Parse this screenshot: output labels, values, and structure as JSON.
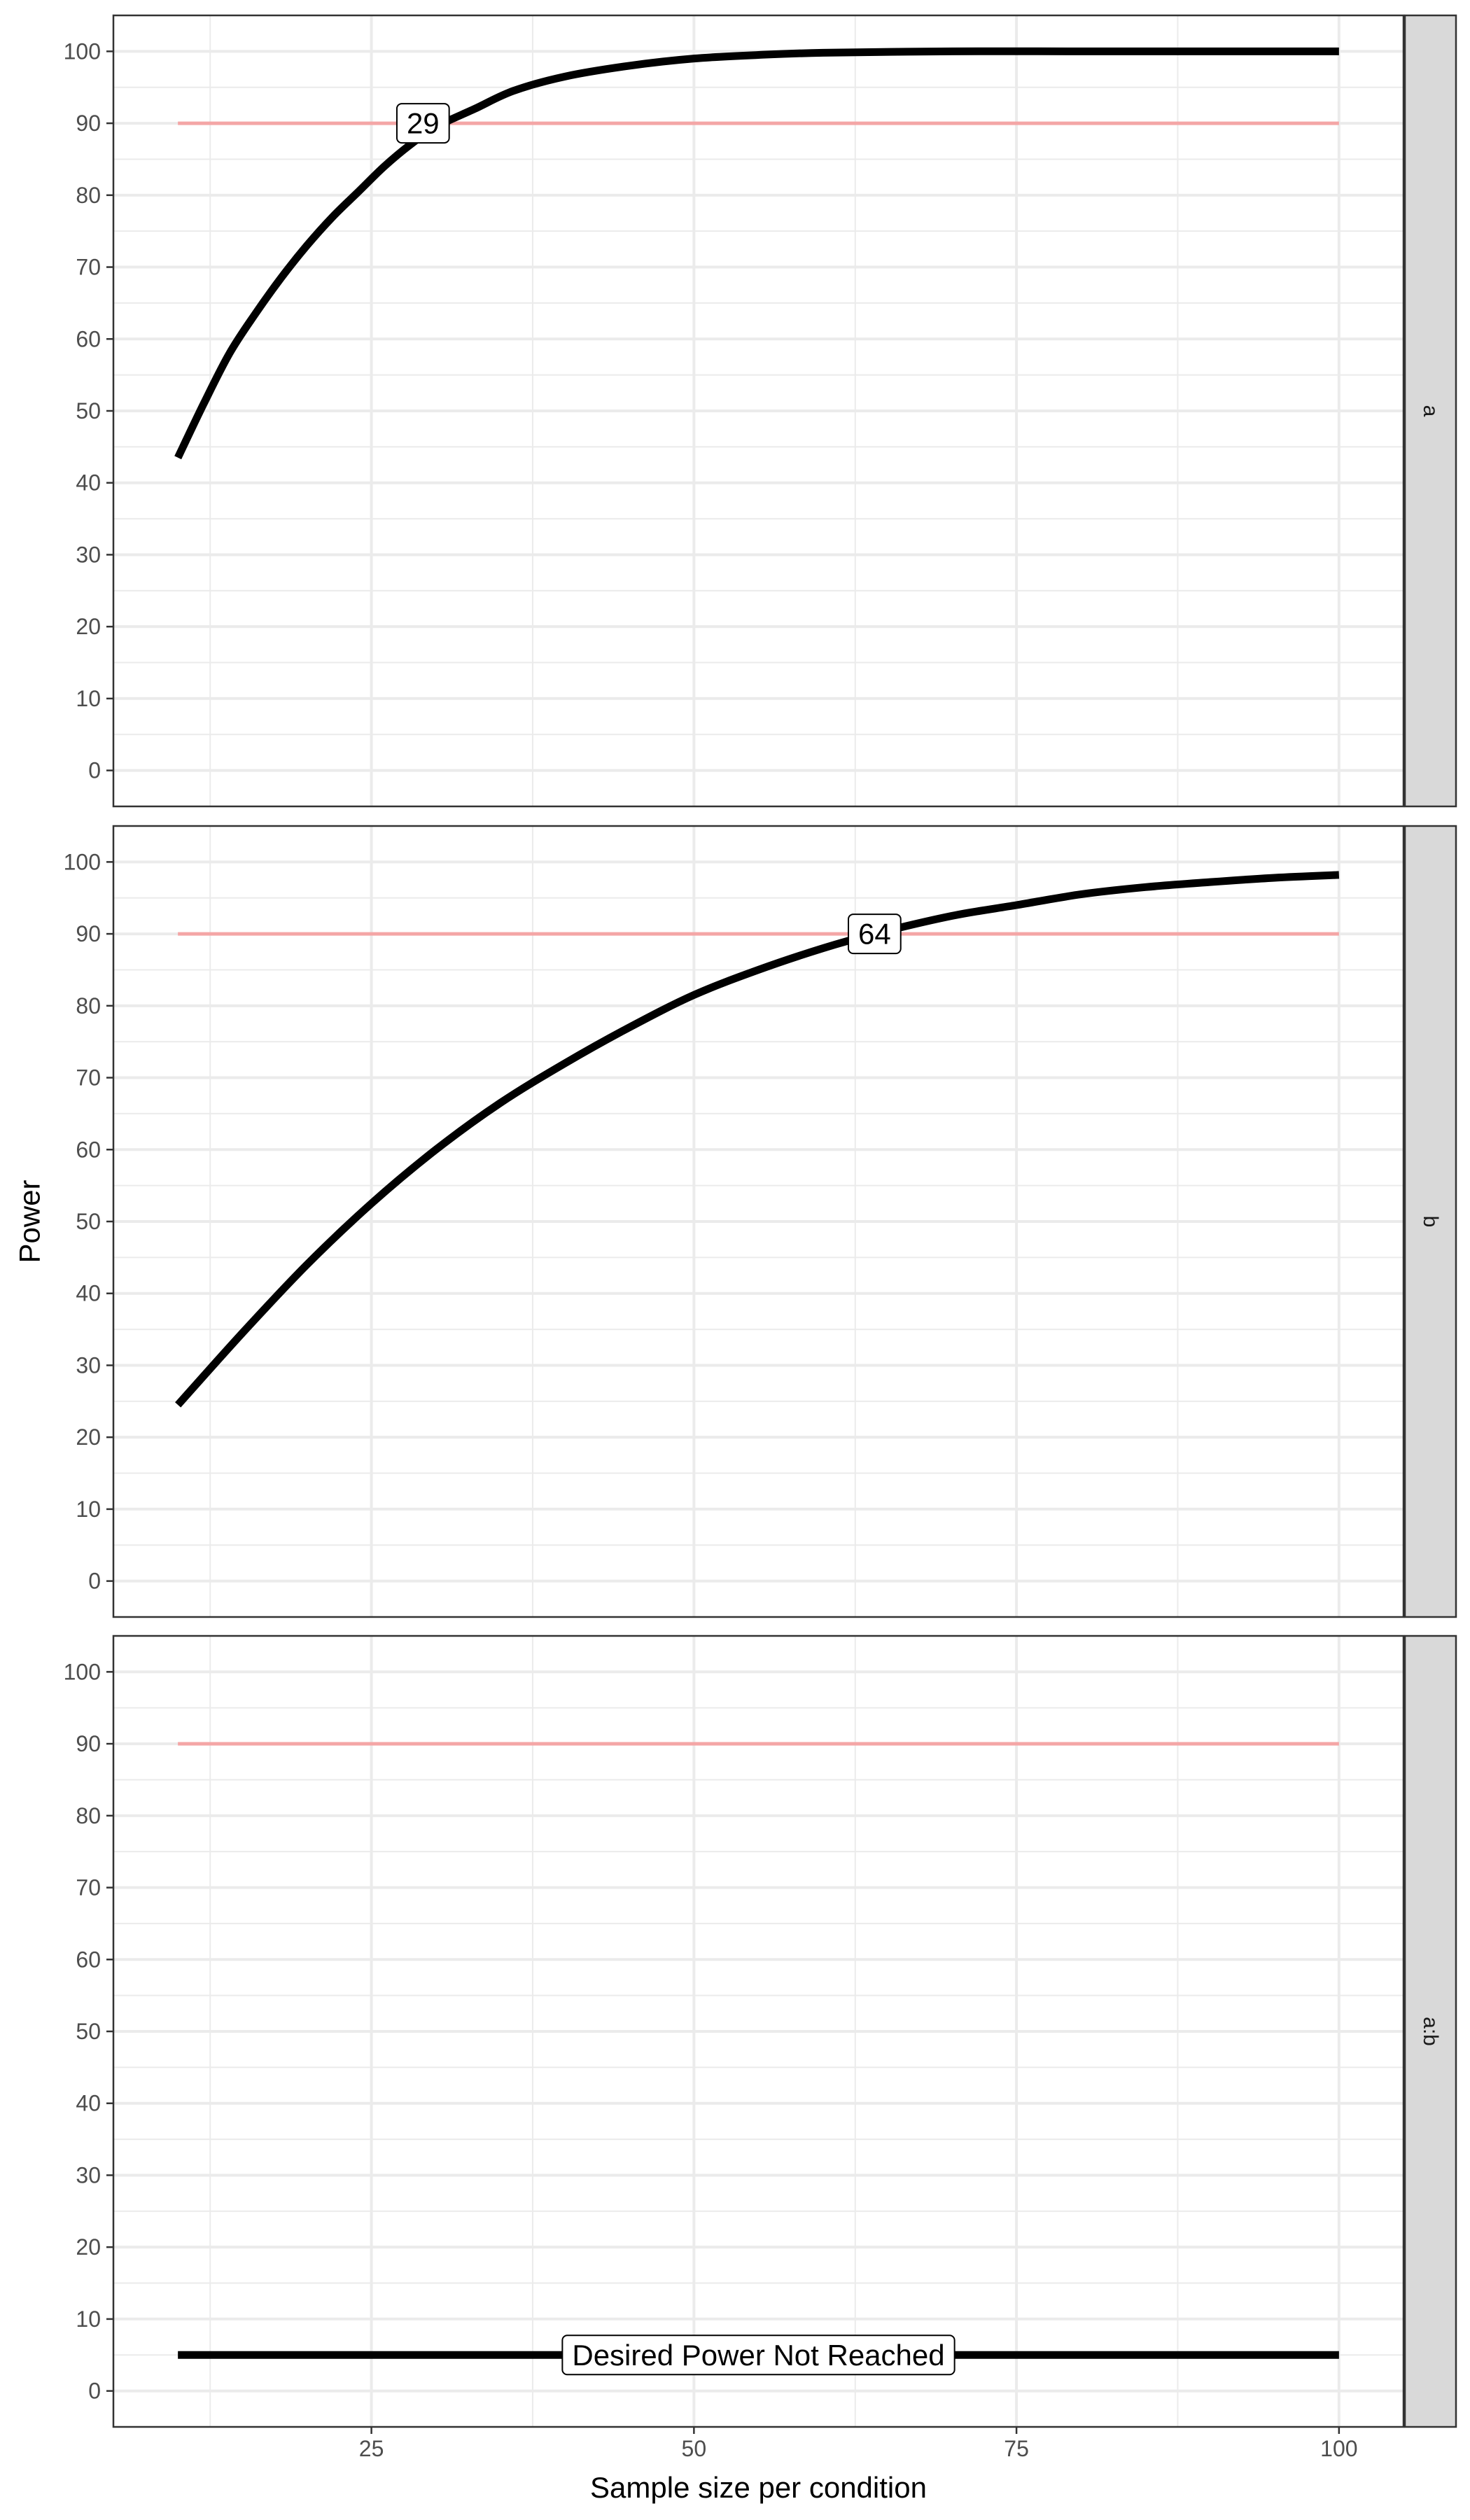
{
  "chart_data": {
    "type": "line",
    "xlabel": "Sample size per condition",
    "ylabel": "Power",
    "xlim": [
      5,
      105
    ],
    "ylim": [
      -5,
      105
    ],
    "x_ticks": [
      25,
      50,
      75,
      100
    ],
    "x_tick_labels": [
      "25",
      "50",
      "75",
      "100"
    ],
    "y_ticks": [
      0,
      10,
      20,
      30,
      40,
      50,
      60,
      70,
      80,
      90,
      100
    ],
    "y_tick_labels": [
      "0",
      "10",
      "20",
      "30",
      "40",
      "50",
      "60",
      "70",
      "80",
      "90",
      "100"
    ],
    "grid": true,
    "desired_power": 90,
    "colors": {
      "power_line": "#000000",
      "desired_line": "#f4a6a6",
      "strip_fill": "#d9d9d9",
      "grid": "#ebebeb",
      "panel_border": "#333333"
    },
    "panels": [
      {
        "label": "a",
        "x": [
          10,
          12,
          14,
          16,
          18,
          20,
          22,
          24,
          26,
          28,
          30,
          33,
          36,
          40,
          45,
          50,
          55,
          60,
          70,
          80,
          90,
          100
        ],
        "power": [
          43.5,
          51,
          58,
          63.5,
          68.5,
          73,
          77,
          80.5,
          84,
          87,
          89.5,
          92,
          94.5,
          96.5,
          98,
          99,
          99.5,
          99.8,
          100,
          100,
          100,
          100
        ],
        "annotation": "29",
        "annotation_x": 29,
        "annotation_y": 90
      },
      {
        "label": "b",
        "x": [
          10,
          15,
          20,
          25,
          30,
          35,
          40,
          45,
          50,
          55,
          60,
          64,
          70,
          75,
          80,
          85,
          90,
          95,
          100
        ],
        "power": [
          24.5,
          34.5,
          44,
          52.5,
          60,
          66.5,
          72,
          77,
          81.5,
          85,
          88,
          90,
          92.5,
          94,
          95.5,
          96.5,
          97.2,
          97.8,
          98.2
        ],
        "annotation": "64",
        "annotation_x": 64,
        "annotation_y": 90
      },
      {
        "label": "a:b",
        "x": [
          10,
          100
        ],
        "power": [
          5,
          5
        ],
        "annotation": "Desired Power Not Reached",
        "annotation_x": 55,
        "annotation_y": 5
      }
    ]
  }
}
